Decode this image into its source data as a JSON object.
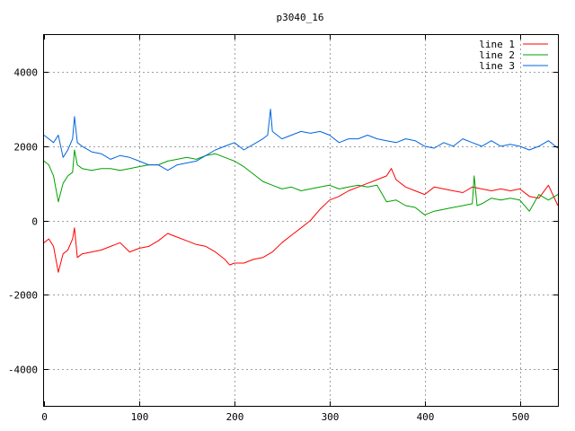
{
  "chart_data": {
    "type": "line",
    "title": "p3040_16",
    "xlabel": "",
    "ylabel": "",
    "xlim": [
      0,
      540
    ],
    "ylim": [
      -5000,
      5000
    ],
    "xticks": [
      0,
      100,
      200,
      300,
      400,
      500
    ],
    "yticks": [
      -4000,
      -2000,
      0,
      2000,
      4000
    ],
    "grid": true,
    "legend_position": "top-right",
    "series": [
      {
        "name": "line 1",
        "color": "#ff0000",
        "x": [
          0,
          5,
          10,
          15,
          20,
          25,
          30,
          32,
          35,
          40,
          50,
          60,
          70,
          80,
          90,
          100,
          110,
          120,
          130,
          140,
          150,
          160,
          170,
          180,
          190,
          195,
          200,
          210,
          220,
          230,
          240,
          250,
          260,
          270,
          280,
          290,
          300,
          310,
          320,
          330,
          340,
          350,
          360,
          365,
          370,
          380,
          390,
          400,
          410,
          420,
          430,
          440,
          450,
          460,
          470,
          480,
          490,
          500,
          510,
          520,
          530,
          540
        ],
        "y": [
          -600,
          -500,
          -700,
          -1400,
          -900,
          -800,
          -500,
          -200,
          -1000,
          -900,
          -850,
          -800,
          -700,
          -600,
          -850,
          -750,
          -700,
          -550,
          -350,
          -450,
          -550,
          -650,
          -700,
          -850,
          -1050,
          -1200,
          -1150,
          -1150,
          -1050,
          -1000,
          -850,
          -600,
          -400,
          -200,
          0,
          300,
          550,
          650,
          800,
          900,
          1000,
          1100,
          1200,
          1400,
          1100,
          900,
          800,
          700,
          900,
          850,
          800,
          750,
          900,
          850,
          800,
          850,
          800,
          850,
          650,
          600,
          950,
          400
        ]
      },
      {
        "name": "line 2",
        "color": "#00a000",
        "x": [
          0,
          5,
          10,
          15,
          20,
          25,
          30,
          32,
          35,
          40,
          50,
          60,
          70,
          80,
          90,
          100,
          110,
          120,
          130,
          140,
          150,
          160,
          170,
          180,
          190,
          200,
          210,
          220,
          230,
          240,
          250,
          260,
          270,
          280,
          290,
          300,
          310,
          320,
          330,
          340,
          350,
          360,
          370,
          380,
          390,
          400,
          410,
          420,
          430,
          440,
          450,
          452,
          455,
          460,
          470,
          480,
          490,
          500,
          510,
          520,
          530,
          540
        ],
        "y": [
          1600,
          1500,
          1200,
          500,
          1000,
          1200,
          1300,
          1900,
          1500,
          1400,
          1350,
          1400,
          1400,
          1350,
          1400,
          1450,
          1500,
          1500,
          1600,
          1650,
          1700,
          1650,
          1750,
          1800,
          1700,
          1600,
          1450,
          1250,
          1050,
          950,
          850,
          900,
          800,
          850,
          900,
          950,
          850,
          900,
          950,
          900,
          950,
          500,
          550,
          400,
          350,
          150,
          250,
          300,
          350,
          400,
          450,
          1200,
          400,
          450,
          600,
          550,
          600,
          550,
          250,
          700,
          550,
          700
        ]
      },
      {
        "name": "line 3",
        "color": "#0066dd",
        "x": [
          0,
          10,
          15,
          20,
          25,
          30,
          32,
          35,
          40,
          50,
          60,
          70,
          80,
          90,
          100,
          110,
          120,
          130,
          140,
          150,
          160,
          170,
          180,
          190,
          200,
          210,
          220,
          230,
          235,
          238,
          240,
          250,
          260,
          270,
          280,
          290,
          300,
          310,
          320,
          330,
          340,
          350,
          360,
          370,
          380,
          390,
          400,
          410,
          420,
          430,
          440,
          450,
          460,
          470,
          480,
          490,
          500,
          510,
          520,
          530,
          540
        ],
        "y": [
          2300,
          2100,
          2300,
          1700,
          1900,
          2200,
          2800,
          2100,
          2000,
          1850,
          1800,
          1650,
          1750,
          1700,
          1600,
          1500,
          1500,
          1350,
          1500,
          1550,
          1600,
          1750,
          1900,
          2000,
          2100,
          1900,
          2050,
          2200,
          2300,
          3000,
          2400,
          2200,
          2300,
          2400,
          2350,
          2400,
          2300,
          2100,
          2200,
          2200,
          2300,
          2200,
          2150,
          2100,
          2200,
          2150,
          2000,
          1950,
          2100,
          2000,
          2200,
          2100,
          2000,
          2150,
          2000,
          2050,
          2000,
          1900,
          2000,
          2150,
          1950
        ]
      }
    ]
  }
}
